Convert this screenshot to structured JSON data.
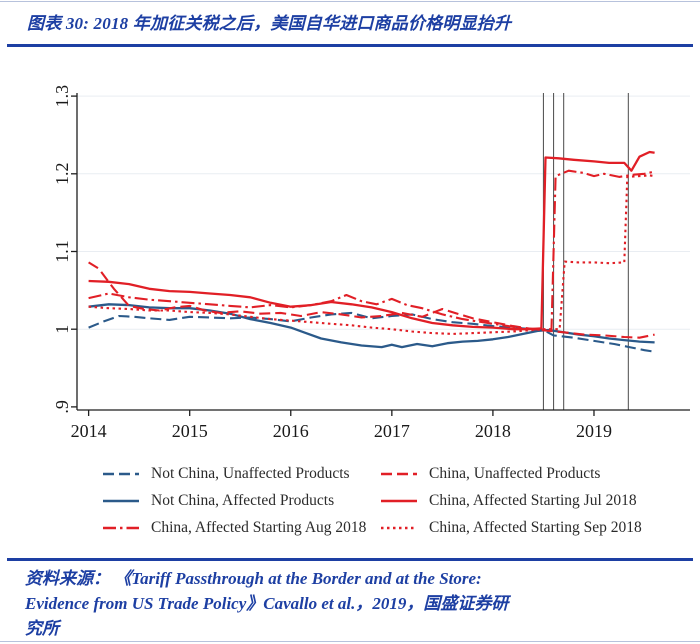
{
  "header": {
    "title": "图表 30:  2018 年加征关税之后，美国自华进口商品价格明显抬升",
    "accent_color": "#1d3fa3"
  },
  "chart_data": {
    "type": "line",
    "title": "",
    "xlabel": "",
    "ylabel": "",
    "xlim": [
      2013.885,
      2019.95
    ],
    "ylim": [
      0.896,
      1.304
    ],
    "x_ticks": [
      2014,
      2015,
      2016,
      2017,
      2018,
      2019
    ],
    "y_ticks": [
      {
        "label": ".9",
        "value": 0.9
      },
      {
        "label": "1",
        "value": 1.0
      },
      {
        "label": "1.1",
        "value": 1.1
      },
      {
        "label": "1.2",
        "value": 1.2
      },
      {
        "label": "1.3",
        "value": 1.3
      }
    ],
    "gridline_values": [
      1.0,
      1.1,
      1.2,
      1.3
    ],
    "grid": true,
    "legend_position": "bottom",
    "reference_lines_x": [
      2018.5,
      2018.6,
      2018.7,
      2019.34
    ],
    "colors": {
      "not_china_blue": "#2b5a8a",
      "china_red": "#e11f26",
      "axis": "#1f1f1f",
      "grid": "#e9edf2",
      "ref_line": "#5a5a5a"
    },
    "series": [
      {
        "name": "Not China, Unaffected Products",
        "color": "#2b5a8a",
        "style": "dashed",
        "points": [
          [
            2014.0,
            1.002
          ],
          [
            2014.15,
            1.01
          ],
          [
            2014.3,
            1.017
          ],
          [
            2014.45,
            1.016
          ],
          [
            2014.6,
            1.014
          ],
          [
            2014.8,
            1.012
          ],
          [
            2015.0,
            1.016
          ],
          [
            2015.2,
            1.015
          ],
          [
            2015.4,
            1.014
          ],
          [
            2015.6,
            1.015
          ],
          [
            2015.8,
            1.013
          ],
          [
            2016.0,
            1.01
          ],
          [
            2016.2,
            1.015
          ],
          [
            2016.4,
            1.019
          ],
          [
            2016.6,
            1.021
          ],
          [
            2016.8,
            1.014
          ],
          [
            2017.0,
            1.017
          ],
          [
            2017.2,
            1.019
          ],
          [
            2017.4,
            1.013
          ],
          [
            2017.6,
            1.009
          ],
          [
            2017.8,
            1.007
          ],
          [
            2018.0,
            1.004
          ],
          [
            2018.2,
            1.002
          ],
          [
            2018.4,
            1.0
          ],
          [
            2018.5,
            0.999
          ],
          [
            2018.6,
            0.992
          ],
          [
            2018.8,
            0.989
          ],
          [
            2019.0,
            0.985
          ],
          [
            2019.2,
            0.981
          ],
          [
            2019.35,
            0.977
          ],
          [
            2019.5,
            0.973
          ],
          [
            2019.6,
            0.971
          ]
        ]
      },
      {
        "name": "China, Unaffected Products",
        "color": "#e11f26",
        "style": "dashed",
        "points": [
          [
            2014.0,
            1.086
          ],
          [
            2014.1,
            1.078
          ],
          [
            2014.25,
            1.052
          ],
          [
            2014.4,
            1.03
          ],
          [
            2014.55,
            1.026
          ],
          [
            2014.7,
            1.024
          ],
          [
            2014.85,
            1.028
          ],
          [
            2015.0,
            1.03
          ],
          [
            2015.15,
            1.024
          ],
          [
            2015.3,
            1.021
          ],
          [
            2015.5,
            1.023
          ],
          [
            2015.7,
            1.02
          ],
          [
            2015.9,
            1.021
          ],
          [
            2016.1,
            1.017
          ],
          [
            2016.3,
            1.022
          ],
          [
            2016.5,
            1.019
          ],
          [
            2016.7,
            1.015
          ],
          [
            2016.9,
            1.017
          ],
          [
            2017.1,
            1.021
          ],
          [
            2017.3,
            1.016
          ],
          [
            2017.5,
            1.026
          ],
          [
            2017.65,
            1.02
          ],
          [
            2017.8,
            1.014
          ],
          [
            2018.0,
            1.009
          ],
          [
            2018.2,
            1.004
          ],
          [
            2018.4,
            1.0
          ],
          [
            2018.55,
            0.998
          ],
          [
            2018.7,
            0.996
          ],
          [
            2018.9,
            0.993
          ],
          [
            2019.1,
            0.992
          ],
          [
            2019.3,
            0.99
          ],
          [
            2019.45,
            0.989
          ],
          [
            2019.6,
            0.993
          ]
        ]
      },
      {
        "name": "Not China, Affected Products",
        "color": "#2b5a8a",
        "style": "solid",
        "points": [
          [
            2014.0,
            1.029
          ],
          [
            2014.2,
            1.032
          ],
          [
            2014.4,
            1.031
          ],
          [
            2014.6,
            1.028
          ],
          [
            2014.8,
            1.027
          ],
          [
            2015.0,
            1.027
          ],
          [
            2015.2,
            1.024
          ],
          [
            2015.4,
            1.02
          ],
          [
            2015.6,
            1.013
          ],
          [
            2015.8,
            1.008
          ],
          [
            2016.0,
            1.002
          ],
          [
            2016.15,
            0.995
          ],
          [
            2016.3,
            0.988
          ],
          [
            2016.5,
            0.983
          ],
          [
            2016.7,
            0.979
          ],
          [
            2016.9,
            0.977
          ],
          [
            2017.0,
            0.98
          ],
          [
            2017.1,
            0.977
          ],
          [
            2017.25,
            0.981
          ],
          [
            2017.4,
            0.978
          ],
          [
            2017.55,
            0.982
          ],
          [
            2017.7,
            0.984
          ],
          [
            2017.85,
            0.985
          ],
          [
            2018.0,
            0.987
          ],
          [
            2018.15,
            0.99
          ],
          [
            2018.3,
            0.994
          ],
          [
            2018.45,
            0.998
          ],
          [
            2018.55,
            0.999
          ],
          [
            2018.7,
            0.996
          ],
          [
            2018.85,
            0.993
          ],
          [
            2019.0,
            0.991
          ],
          [
            2019.15,
            0.988
          ],
          [
            2019.3,
            0.986
          ],
          [
            2019.45,
            0.984
          ],
          [
            2019.6,
            0.983
          ]
        ]
      },
      {
        "name": "China, Affected Starting Jul 2018",
        "color": "#e11f26",
        "style": "solid",
        "points": [
          [
            2014.0,
            1.062
          ],
          [
            2014.2,
            1.061
          ],
          [
            2014.4,
            1.058
          ],
          [
            2014.6,
            1.052
          ],
          [
            2014.8,
            1.049
          ],
          [
            2015.0,
            1.048
          ],
          [
            2015.2,
            1.046
          ],
          [
            2015.4,
            1.044
          ],
          [
            2015.6,
            1.041
          ],
          [
            2015.8,
            1.034
          ],
          [
            2016.0,
            1.029
          ],
          [
            2016.2,
            1.031
          ],
          [
            2016.4,
            1.035
          ],
          [
            2016.6,
            1.032
          ],
          [
            2016.8,
            1.028
          ],
          [
            2017.0,
            1.022
          ],
          [
            2017.2,
            1.014
          ],
          [
            2017.4,
            1.008
          ],
          [
            2017.6,
            1.005
          ],
          [
            2017.8,
            1.003
          ],
          [
            2018.0,
            1.002
          ],
          [
            2018.2,
            1.0
          ],
          [
            2018.35,
            1.0
          ],
          [
            2018.48,
            1.001
          ],
          [
            2018.52,
            1.221
          ],
          [
            2018.65,
            1.22
          ],
          [
            2018.8,
            1.218
          ],
          [
            2019.0,
            1.216
          ],
          [
            2019.15,
            1.214
          ],
          [
            2019.3,
            1.214
          ],
          [
            2019.37,
            1.204
          ],
          [
            2019.45,
            1.222
          ],
          [
            2019.55,
            1.228
          ],
          [
            2019.6,
            1.227
          ]
        ]
      },
      {
        "name": "China, Affected Starting Aug 2018",
        "color": "#e11f26",
        "style": "dash-dot",
        "points": [
          [
            2014.0,
            1.04
          ],
          [
            2014.2,
            1.046
          ],
          [
            2014.4,
            1.041
          ],
          [
            2014.6,
            1.038
          ],
          [
            2014.8,
            1.036
          ],
          [
            2015.0,
            1.034
          ],
          [
            2015.2,
            1.032
          ],
          [
            2015.4,
            1.03
          ],
          [
            2015.6,
            1.028
          ],
          [
            2015.8,
            1.031
          ],
          [
            2016.0,
            1.028
          ],
          [
            2016.2,
            1.031
          ],
          [
            2016.4,
            1.036
          ],
          [
            2016.55,
            1.044
          ],
          [
            2016.7,
            1.036
          ],
          [
            2016.85,
            1.032
          ],
          [
            2017.0,
            1.039
          ],
          [
            2017.15,
            1.031
          ],
          [
            2017.3,
            1.027
          ],
          [
            2017.5,
            1.019
          ],
          [
            2017.7,
            1.013
          ],
          [
            2017.9,
            1.009
          ],
          [
            2018.1,
            1.005
          ],
          [
            2018.3,
            1.001
          ],
          [
            2018.5,
            1.0
          ],
          [
            2018.58,
            1.0
          ],
          [
            2018.62,
            1.197
          ],
          [
            2018.75,
            1.204
          ],
          [
            2018.9,
            1.201
          ],
          [
            2019.0,
            1.197
          ],
          [
            2019.1,
            1.2
          ],
          [
            2019.25,
            1.196
          ],
          [
            2019.4,
            1.199
          ],
          [
            2019.5,
            1.2
          ],
          [
            2019.6,
            1.203
          ]
        ]
      },
      {
        "name": "China, Affected Starting Sep 2018",
        "color": "#e11f26",
        "style": "dotted",
        "points": [
          [
            2014.0,
            1.029
          ],
          [
            2014.2,
            1.027
          ],
          [
            2014.4,
            1.026
          ],
          [
            2014.6,
            1.024
          ],
          [
            2014.8,
            1.024
          ],
          [
            2015.0,
            1.022
          ],
          [
            2015.2,
            1.021
          ],
          [
            2015.4,
            1.019
          ],
          [
            2015.6,
            1.016
          ],
          [
            2015.8,
            1.013
          ],
          [
            2016.0,
            1.011
          ],
          [
            2016.2,
            1.009
          ],
          [
            2016.4,
            1.007
          ],
          [
            2016.6,
            1.005
          ],
          [
            2016.8,
            1.002
          ],
          [
            2017.0,
            1.0
          ],
          [
            2017.2,
            0.997
          ],
          [
            2017.4,
            0.995
          ],
          [
            2017.6,
            0.994
          ],
          [
            2017.8,
            0.995
          ],
          [
            2018.0,
            0.996
          ],
          [
            2018.2,
            0.997
          ],
          [
            2018.4,
            0.999
          ],
          [
            2018.6,
            1.0
          ],
          [
            2018.66,
            1.0
          ],
          [
            2018.71,
            1.087
          ],
          [
            2018.85,
            1.086
          ],
          [
            2019.0,
            1.086
          ],
          [
            2019.15,
            1.085
          ],
          [
            2019.3,
            1.086
          ],
          [
            2019.33,
            1.196
          ],
          [
            2019.45,
            1.197
          ],
          [
            2019.55,
            1.198
          ],
          [
            2019.6,
            1.197
          ]
        ]
      }
    ]
  },
  "footer": {
    "lines": [
      "资料来源： 《Tariff Passthrough at the Border and at the Store:",
      "Evidence from US Trade Policy》Cavallo et al.，2019，国盛证券研",
      "究所"
    ]
  }
}
